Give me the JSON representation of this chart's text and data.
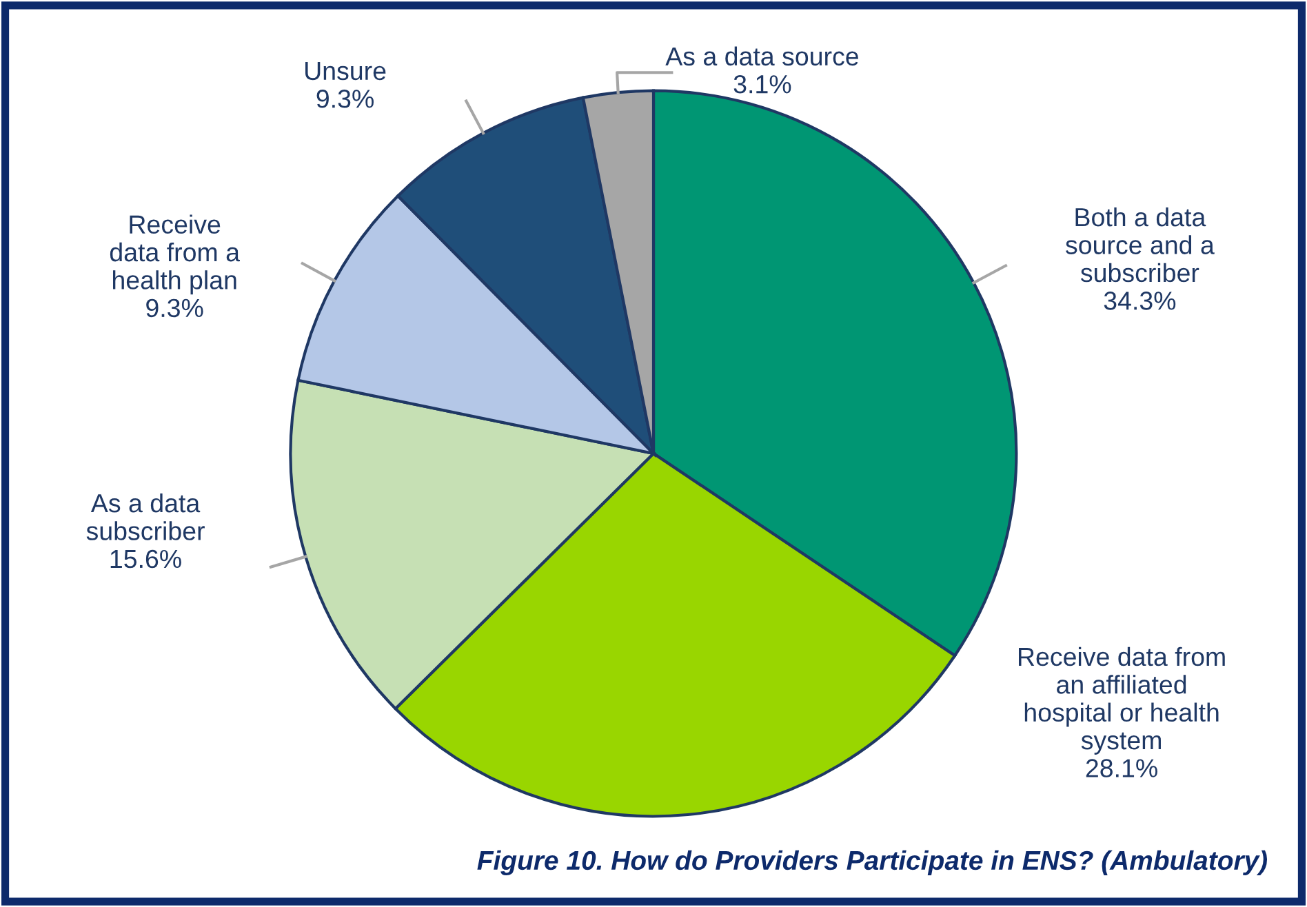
{
  "chart_data": {
    "type": "pie",
    "title": "Figure 10. How do Providers Participate in ENS? (Ambulatory)",
    "categories": [
      "Both a data\nsource and a\nsubscriber",
      "Receive data from\nan affiliated\nhospital or health\nsystem",
      "As a data\nsubscriber",
      "Receive\ndata from a\nhealth plan",
      "Unsure",
      "As a data source"
    ],
    "values": [
      34.3,
      28.1,
      15.6,
      9.3,
      9.3,
      3.1
    ],
    "colors": [
      "#009673",
      "#99d600",
      "#c6e0b4",
      "#b4c7e7",
      "#1f4e79",
      "#a6a6a6"
    ],
    "value_labels": [
      "34.3%",
      "28.1%",
      "15.6%",
      "9.3%",
      "9.3%",
      "3.1%"
    ]
  }
}
